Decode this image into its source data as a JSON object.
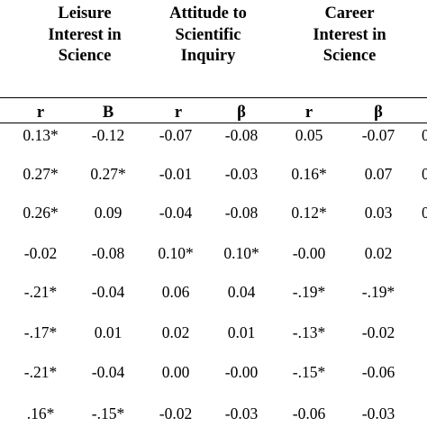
{
  "table": {
    "groups": [
      {
        "lines": [
          "Leisure",
          "Interest in",
          "Science"
        ]
      },
      {
        "lines": [
          "Attitude to",
          "Scientific",
          "Inquiry"
        ]
      },
      {
        "lines": [
          "Career",
          "Interest in",
          "Science"
        ]
      }
    ],
    "subheaders": [
      "r",
      "B",
      "r",
      "β",
      "r",
      "β"
    ],
    "rows": [
      [
        "0.13*",
        "-0.12",
        "-0.07",
        "-0.08",
        "0.05",
        "-0.07"
      ],
      [
        "0.27*",
        "0.27*",
        "-0.01",
        "-0.03",
        "0.16*",
        "0.07"
      ],
      [
        "0.26*",
        "0.09",
        "-0.04",
        "-0.08",
        "0.12*",
        "0.03"
      ],
      [
        "-0.02",
        "-0.08",
        "0.10*",
        "0.10*",
        "-0.00",
        "0.02"
      ],
      [
        "-.21*",
        "-0.04",
        "0.06",
        "0.04",
        "-.19*",
        "-.19*"
      ],
      [
        "-.17*",
        "0.01",
        "0.02",
        "0.01",
        "-.13*",
        "-0.02"
      ],
      [
        "-.21*",
        "-0.04",
        "0.00",
        "-0.00",
        "-.15*",
        "-0.06"
      ],
      [
        ".16*",
        "-.15*",
        "-0.02",
        "-0.03",
        "-0.06",
        "-0.03"
      ]
    ],
    "clipped_cells": [
      "0",
      "0",
      "0",
      "",
      "",
      "",
      "",
      ""
    ]
  }
}
